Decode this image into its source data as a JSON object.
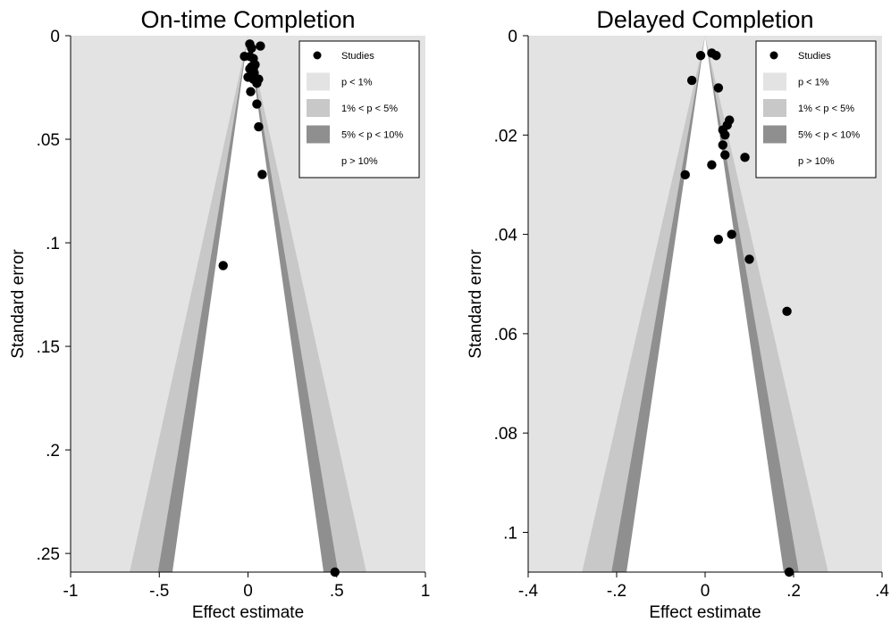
{
  "chart_data": [
    {
      "type": "scatter",
      "subtype": "contour-enhanced funnel plot",
      "title": "On-time Completion",
      "xlabel": "Effect estimate",
      "ylabel": "Standard error",
      "xlim": [
        -1,
        1
      ],
      "ylim": [
        0,
        0.259
      ],
      "y_reversed": true,
      "xticks": [
        -1,
        -0.5,
        0,
        0.5,
        1
      ],
      "xtick_labels": [
        "-1",
        "-.5",
        "0",
        ".5",
        "1"
      ],
      "yticks": [
        0,
        0.05,
        0.1,
        0.15,
        0.2,
        0.25
      ],
      "ytick_labels": [
        "0",
        ".05",
        ".1",
        ".15",
        ".2",
        ".25"
      ],
      "grid": false,
      "legend_position": "top-right",
      "legend": [
        {
          "label": "Studies",
          "symbol": "dot",
          "color": "#000000"
        },
        {
          "label": "p < 1%",
          "symbol": "box",
          "color": "#e3e3e3"
        },
        {
          "label": "1% < p < 5%",
          "symbol": "box",
          "color": "#c8c8c8"
        },
        {
          "label": "5% < p < 10%",
          "symbol": "box",
          "color": "#8f8f8f"
        },
        {
          "label": "p > 10%",
          "symbol": "none",
          "color": "#ffffff"
        }
      ],
      "contour_z": [
        1.645,
        1.96,
        2.576
      ],
      "series": [
        {
          "name": "Studies",
          "points": [
            {
              "x": 0.01,
              "y": 0.004
            },
            {
              "x": 0.07,
              "y": 0.005
            },
            {
              "x": 0.02,
              "y": 0.006
            },
            {
              "x": -0.02,
              "y": 0.01
            },
            {
              "x": 0.01,
              "y": 0.01
            },
            {
              "x": 0.03,
              "y": 0.011
            },
            {
              "x": 0.04,
              "y": 0.014
            },
            {
              "x": 0.02,
              "y": 0.015
            },
            {
              "x": 0.03,
              "y": 0.016
            },
            {
              "x": 0.01,
              "y": 0.016
            },
            {
              "x": 0.035,
              "y": 0.018
            },
            {
              "x": 0.0,
              "y": 0.02
            },
            {
              "x": 0.06,
              "y": 0.021
            },
            {
              "x": 0.03,
              "y": 0.021
            },
            {
              "x": 0.05,
              "y": 0.023
            },
            {
              "x": 0.015,
              "y": 0.027
            },
            {
              "x": 0.05,
              "y": 0.033
            },
            {
              "x": 0.06,
              "y": 0.044
            },
            {
              "x": 0.08,
              "y": 0.067
            },
            {
              "x": -0.14,
              "y": 0.111
            },
            {
              "x": 0.49,
              "y": 0.259
            }
          ]
        }
      ]
    },
    {
      "type": "scatter",
      "subtype": "contour-enhanced funnel plot",
      "title": "Delayed Completion",
      "xlabel": "Effect estimate",
      "ylabel": "Standard error",
      "xlim": [
        -0.4,
        0.4
      ],
      "ylim": [
        0,
        0.108
      ],
      "y_reversed": true,
      "xticks": [
        -0.4,
        -0.2,
        0,
        0.2,
        0.4
      ],
      "xtick_labels": [
        "-.4",
        "-.2",
        "0",
        ".2",
        ".4"
      ],
      "yticks": [
        0,
        0.02,
        0.04,
        0.06,
        0.08,
        0.1
      ],
      "ytick_labels": [
        "0",
        ".02",
        ".04",
        ".06",
        ".08",
        ".1"
      ],
      "grid": false,
      "legend_position": "top-right",
      "legend": [
        {
          "label": "Studies",
          "symbol": "dot",
          "color": "#000000"
        },
        {
          "label": "p < 1%",
          "symbol": "box",
          "color": "#e3e3e3"
        },
        {
          "label": "1% < p < 5%",
          "symbol": "box",
          "color": "#c8c8c8"
        },
        {
          "label": "5% < p < 10%",
          "symbol": "box",
          "color": "#8f8f8f"
        },
        {
          "label": "p > 10%",
          "symbol": "none",
          "color": "#ffffff"
        }
      ],
      "contour_z": [
        1.645,
        1.96,
        2.576
      ],
      "series": [
        {
          "name": "Studies",
          "points": [
            {
              "x": 0.015,
              "y": 0.0035
            },
            {
              "x": 0.025,
              "y": 0.004
            },
            {
              "x": -0.01,
              "y": 0.004
            },
            {
              "x": -0.03,
              "y": 0.009
            },
            {
              "x": 0.03,
              "y": 0.0105
            },
            {
              "x": 0.055,
              "y": 0.017
            },
            {
              "x": 0.05,
              "y": 0.018
            },
            {
              "x": 0.04,
              "y": 0.019
            },
            {
              "x": 0.045,
              "y": 0.02
            },
            {
              "x": 0.04,
              "y": 0.022
            },
            {
              "x": 0.045,
              "y": 0.024
            },
            {
              "x": 0.09,
              "y": 0.0245
            },
            {
              "x": 0.015,
              "y": 0.026
            },
            {
              "x": -0.045,
              "y": 0.028
            },
            {
              "x": 0.06,
              "y": 0.04
            },
            {
              "x": 0.03,
              "y": 0.041
            },
            {
              "x": 0.1,
              "y": 0.045
            },
            {
              "x": 0.185,
              "y": 0.0555
            },
            {
              "x": 0.19,
              "y": 0.108
            }
          ]
        }
      ]
    }
  ]
}
